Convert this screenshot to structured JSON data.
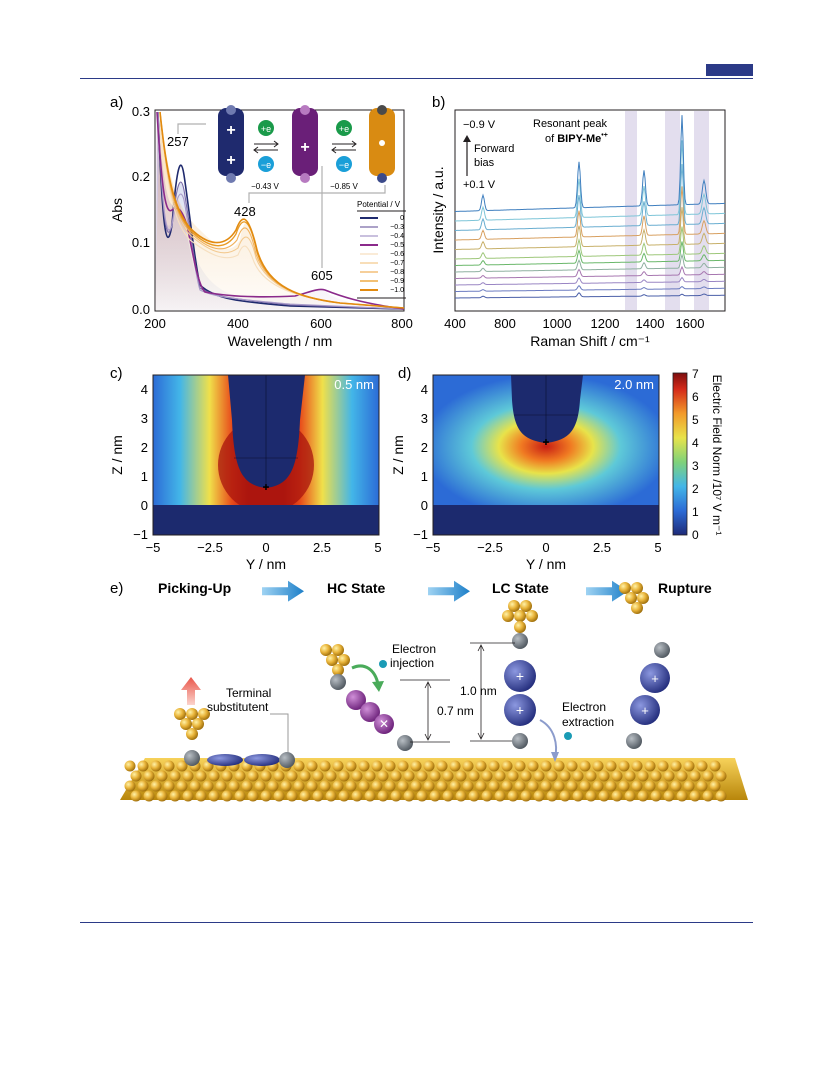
{
  "panels": {
    "a": {
      "label": "a)",
      "ylabel": "Abs",
      "xlabel": "Wavelength / nm",
      "xticks": [
        "200",
        "400",
        "600",
        "800"
      ],
      "yticks": [
        "0.0",
        "0.1",
        "0.2",
        "0.3"
      ],
      "peaks": [
        "257",
        "428",
        "605"
      ],
      "legend_title": "Potential / V",
      "legend": [
        "0",
        "−0.3",
        "−0.4",
        "−0.5",
        "−0.6",
        "−0.7",
        "−0.8",
        "−0.9",
        "−1.0"
      ],
      "legend_colors": [
        "#1f2a6e",
        "#7a6aa8",
        "#a99bc9",
        "#8b2a8b",
        "#f6dfbf",
        "#f3c98e",
        "#f0b25e",
        "#e99a22",
        "#e28b10"
      ],
      "redox": {
        "plus_e": "+e",
        "minus_e": "−e",
        "v1": "−0.43 V",
        "v2": "−0.85 V"
      }
    },
    "b": {
      "label": "b)",
      "ylabel": "Intensity / a.u.",
      "xlabel": "Raman Shift / cm⁻¹",
      "xticks": [
        "400",
        "800",
        "1000",
        "1200",
        "1400",
        "1600"
      ],
      "top_voltage": "−0.9 V",
      "forward_bias": [
        "Forward",
        "bias"
      ],
      "bottom_voltage": "+0.1 V",
      "resonant_line1": "Resonant peak",
      "resonant_line2_prefix": "of ",
      "resonant_bold": "BIPY-Me",
      "resonant_sup": "•+"
    },
    "c": {
      "label": "c)",
      "tag": "0.5 nm",
      "ylabel": "Z / nm",
      "xlabel": "Y / nm",
      "xticks": [
        "−5",
        "−2.5",
        "0",
        "2.5",
        "5"
      ],
      "yticks": [
        "−1",
        "0",
        "1",
        "2",
        "3",
        "4"
      ]
    },
    "d": {
      "label": "d)",
      "tag": "2.0 nm",
      "ylabel": "Z / nm",
      "xlabel": "Y / nm",
      "xticks": [
        "−5",
        "−2.5",
        "0",
        "2.5",
        "5"
      ],
      "yticks": [
        "−1",
        "0",
        "1",
        "2",
        "3",
        "4"
      ]
    },
    "colorbar": {
      "title": "Electric Field Norm /10⁷ V m⁻¹",
      "ticks": [
        "0",
        "1",
        "2",
        "3",
        "4",
        "5",
        "6",
        "7"
      ]
    },
    "e": {
      "label": "e)",
      "states": [
        "Picking-Up",
        "HC State",
        "LC State",
        "Rupture"
      ],
      "terminal": [
        "Terminal",
        "substitutent"
      ],
      "injection": [
        "Electron",
        "injection"
      ],
      "extraction": [
        "Electron",
        "extraction"
      ],
      "d_07": "0.7 nm",
      "d_10": "1.0 nm"
    }
  },
  "chart_data": [
    {
      "type": "line",
      "panel": "a",
      "xlabel": "Wavelength / nm",
      "ylabel": "Abs",
      "xlim": [
        200,
        800
      ],
      "ylim": [
        0,
        0.3
      ],
      "annotations": [
        {
          "text": "257",
          "x": 257
        },
        {
          "text": "428",
          "x": 428
        },
        {
          "text": "605",
          "x": 605
        }
      ],
      "series": [
        {
          "name": "0",
          "x": [
            200,
            220,
            240,
            257,
            275,
            300,
            330,
            360,
            400,
            430,
            500,
            600,
            700,
            800
          ],
          "values": [
            0.3,
            0.15,
            0.12,
            0.23,
            0.15,
            0.05,
            0.03,
            0.02,
            0.01,
            0.005,
            0.003,
            0.002,
            0.001,
            0.0
          ]
        },
        {
          "name": "−0.5",
          "x": [
            200,
            220,
            240,
            257,
            275,
            300,
            340,
            380,
            400,
            430,
            500,
            560,
            605,
            650,
            700,
            800
          ],
          "values": [
            0.3,
            0.15,
            0.13,
            0.15,
            0.12,
            0.06,
            0.04,
            0.06,
            0.05,
            0.04,
            0.02,
            0.02,
            0.03,
            0.015,
            0.005,
            0.0
          ]
        },
        {
          "name": "−1.0",
          "x": [
            200,
            220,
            240,
            257,
            280,
            300,
            340,
            380,
            400,
            428,
            450,
            500,
            600,
            700,
            800
          ],
          "values": [
            0.3,
            0.2,
            0.13,
            0.12,
            0.1,
            0.07,
            0.05,
            0.06,
            0.1,
            0.13,
            0.1,
            0.06,
            0.02,
            0.01,
            0.005
          ]
        }
      ]
    },
    {
      "type": "line",
      "panel": "b",
      "xlabel": "Raman Shift / cm⁻¹",
      "ylabel": "Intensity / a.u.",
      "xlim": [
        400,
        1750
      ],
      "peak_positions": [
        540,
        1020,
        1345,
        1535,
        1645
      ]
    },
    {
      "type": "heatmap",
      "panel": "c",
      "xlabel": "Y / nm",
      "ylabel": "Z / nm",
      "xlim": [
        -5,
        5
      ],
      "ylim": [
        -1,
        4.5
      ],
      "gap": "0.5 nm",
      "crange": [
        0,
        7
      ]
    },
    {
      "type": "heatmap",
      "panel": "d",
      "xlabel": "Y / nm",
      "ylabel": "Z / nm",
      "xlim": [
        -5,
        5
      ],
      "ylim": [
        -1,
        4.5
      ],
      "gap": "2.0 nm",
      "crange": [
        0,
        7
      ]
    }
  ]
}
